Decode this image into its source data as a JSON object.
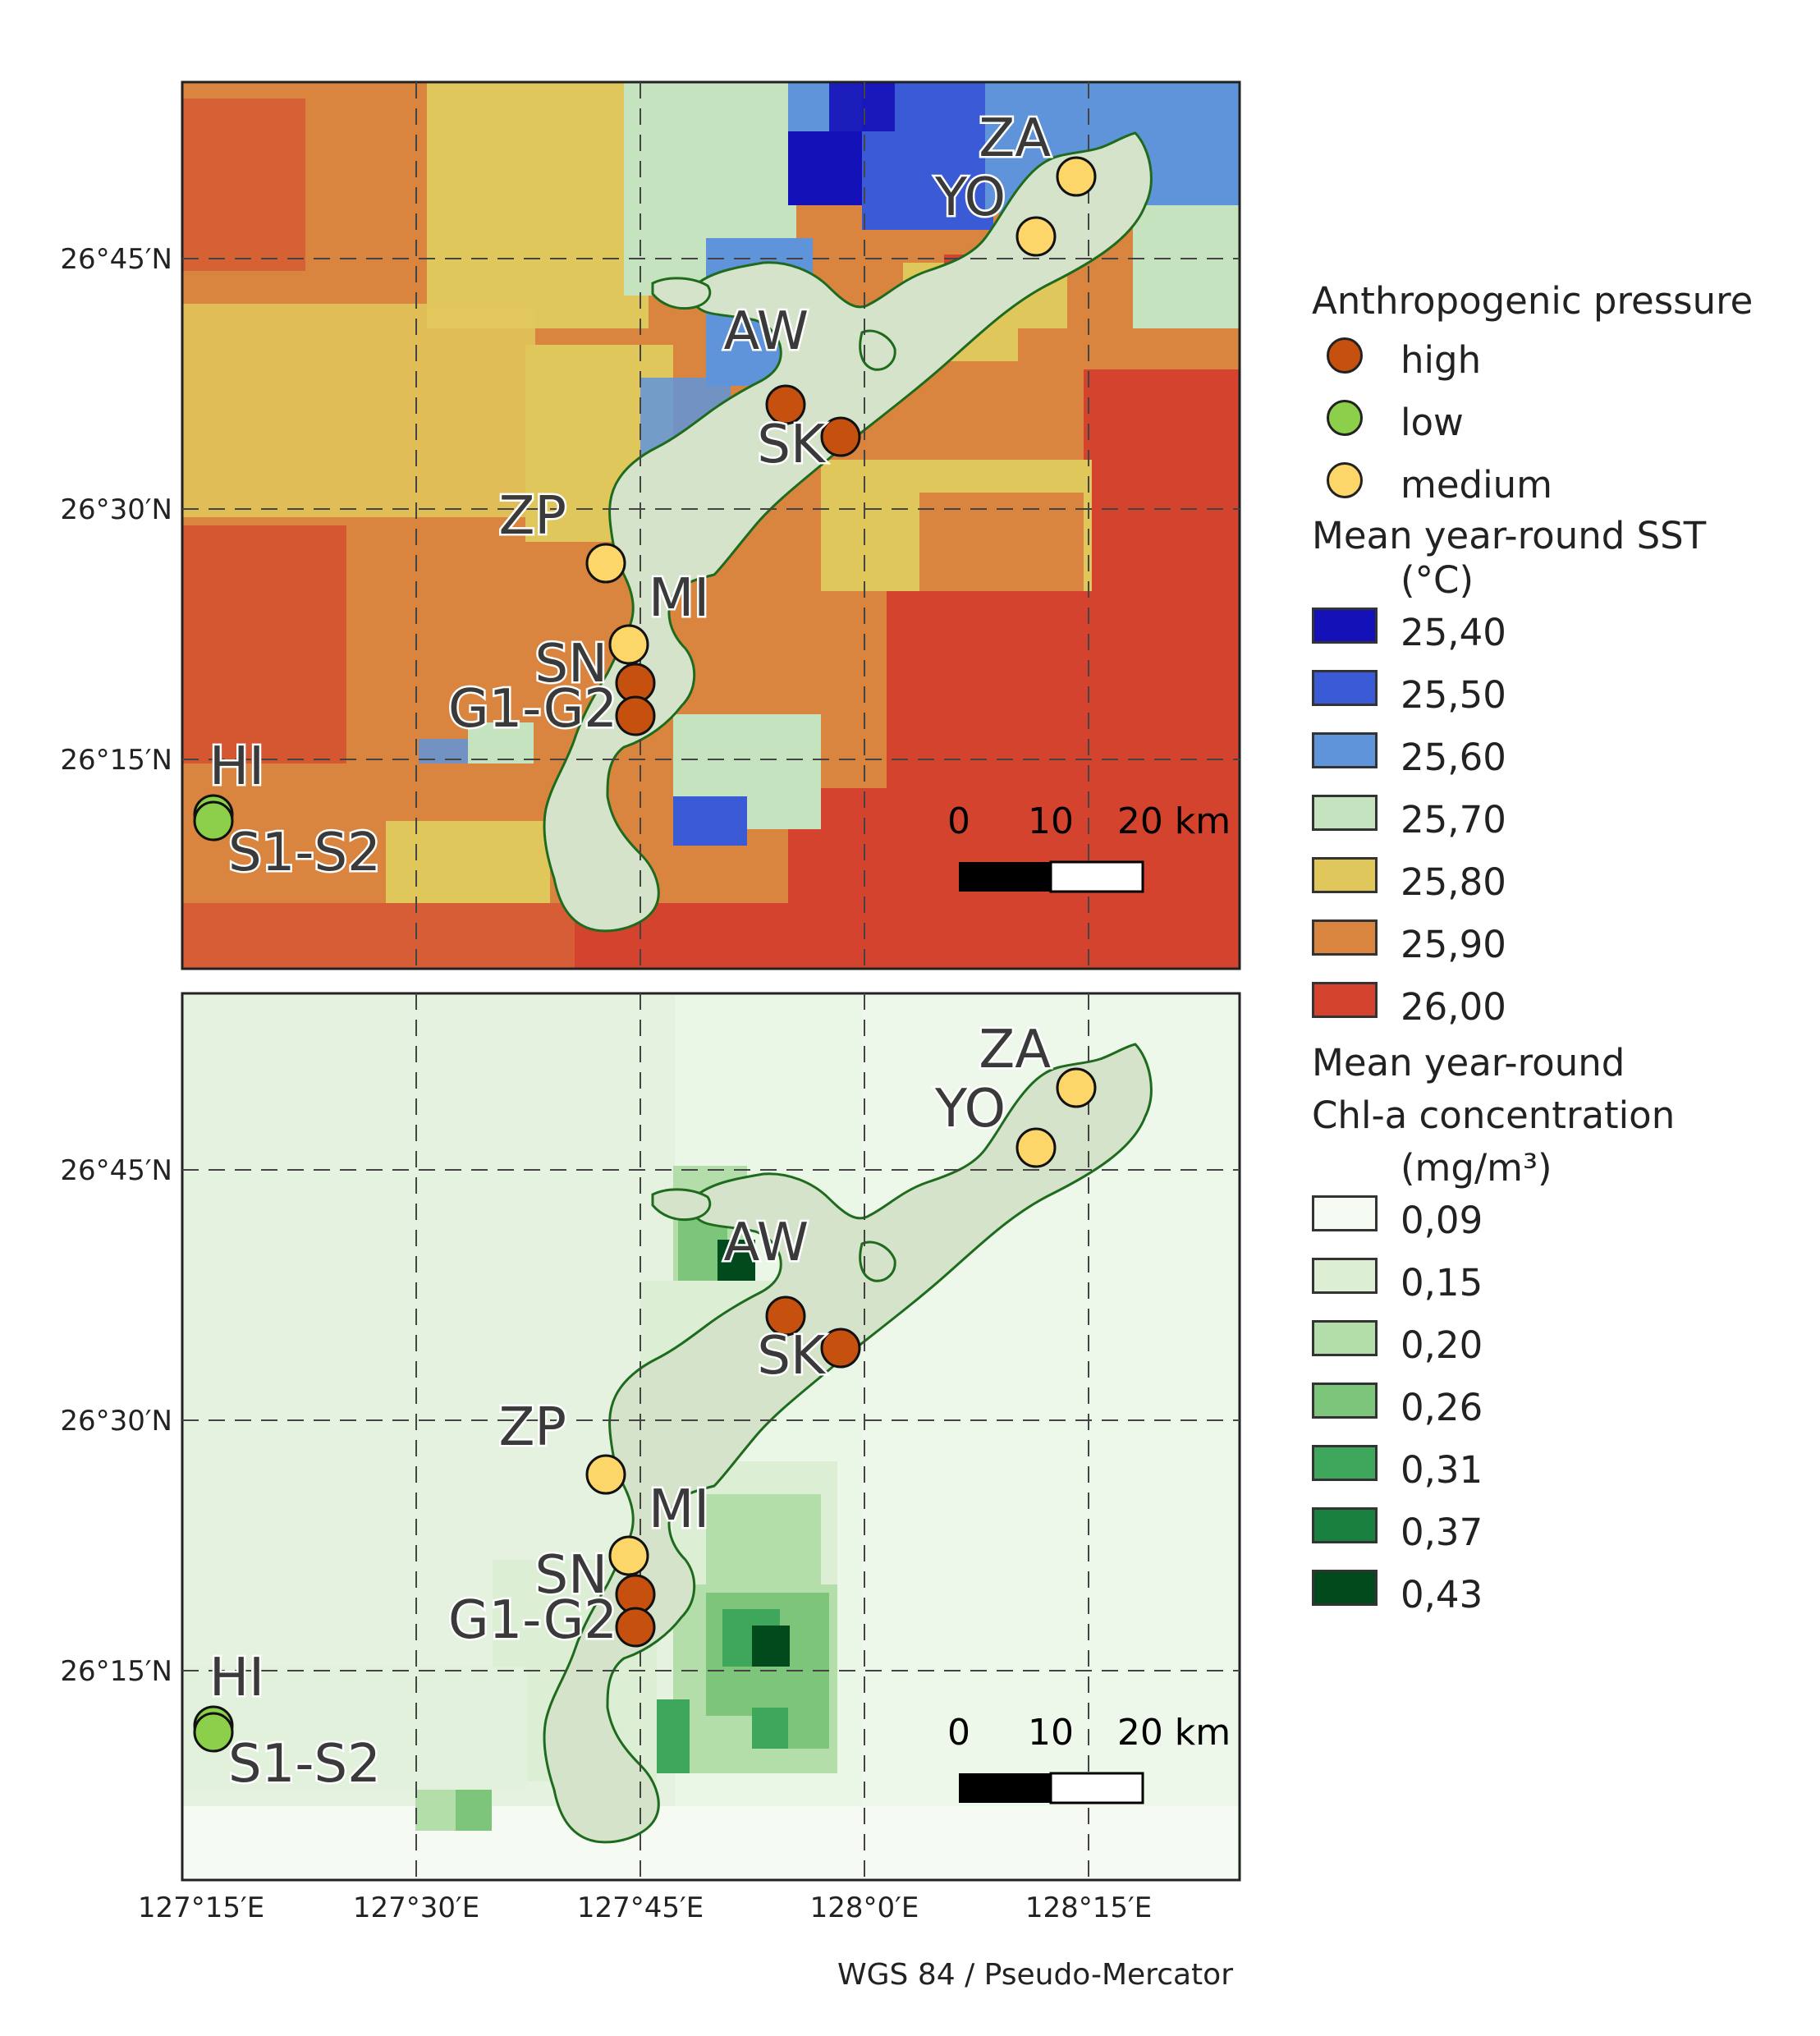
{
  "axes": {
    "lat_ticks": [
      "26°45′N",
      "26°30′N",
      "26°15′N"
    ],
    "lon_ticks": [
      "127°15′E",
      "127°30′E",
      "127°45′E",
      "128°0′E",
      "128°15′E"
    ]
  },
  "sites": [
    {
      "code": "ZA",
      "pressure": "medium"
    },
    {
      "code": "YO",
      "pressure": "medium"
    },
    {
      "code": "AW",
      "pressure": "high"
    },
    {
      "code": "SK",
      "pressure": "high"
    },
    {
      "code": "ZP",
      "pressure": "medium"
    },
    {
      "code": "MI",
      "pressure": "medium"
    },
    {
      "code": "SN",
      "pressure": "high"
    },
    {
      "code": "G1-G2",
      "pressure": "high"
    },
    {
      "code": "HI",
      "pressure": "low"
    },
    {
      "code": "S1-S2",
      "pressure": "low"
    }
  ],
  "scale_bar": {
    "labels": [
      "0",
      "10",
      "20 km"
    ]
  },
  "legend": {
    "pressure": {
      "title": "Anthropogenic pressure",
      "items": [
        {
          "label": "high",
          "color": "#c6510f"
        },
        {
          "label": "low",
          "color": "#8ccf4a"
        },
        {
          "label": "medium",
          "color": "#fdd66a"
        }
      ]
    },
    "sst": {
      "title_line1": "Mean year-round SST",
      "title_line2": "(°C)",
      "items": [
        {
          "label": "25,40",
          "color": "#1511b8"
        },
        {
          "label": "25,50",
          "color": "#3a5ad6"
        },
        {
          "label": "25,60",
          "color": "#5f94db"
        },
        {
          "label": "25,70",
          "color": "#c5e3bf"
        },
        {
          "label": "25,80",
          "color": "#e0c75c"
        },
        {
          "label": "25,90",
          "color": "#d9853f"
        },
        {
          "label": "26,00",
          "color": "#d3432e"
        }
      ]
    },
    "chl": {
      "title_line1": "Mean year-round",
      "title_line2": "Chl-a concentration",
      "title_line3": "(mg/m³)",
      "items": [
        {
          "label": "0,09",
          "color": "#f5fbf2"
        },
        {
          "label": "0,15",
          "color": "#dcefd5"
        },
        {
          "label": "0,20",
          "color": "#b3dea9"
        },
        {
          "label": "0,26",
          "color": "#7cc57b"
        },
        {
          "label": "0,31",
          "color": "#3ea75c"
        },
        {
          "label": "0,37",
          "color": "#1a8040"
        },
        {
          "label": "0,43",
          "color": "#014a1c"
        }
      ]
    }
  },
  "crs_label": "WGS 84 / Pseudo-Mercator"
}
